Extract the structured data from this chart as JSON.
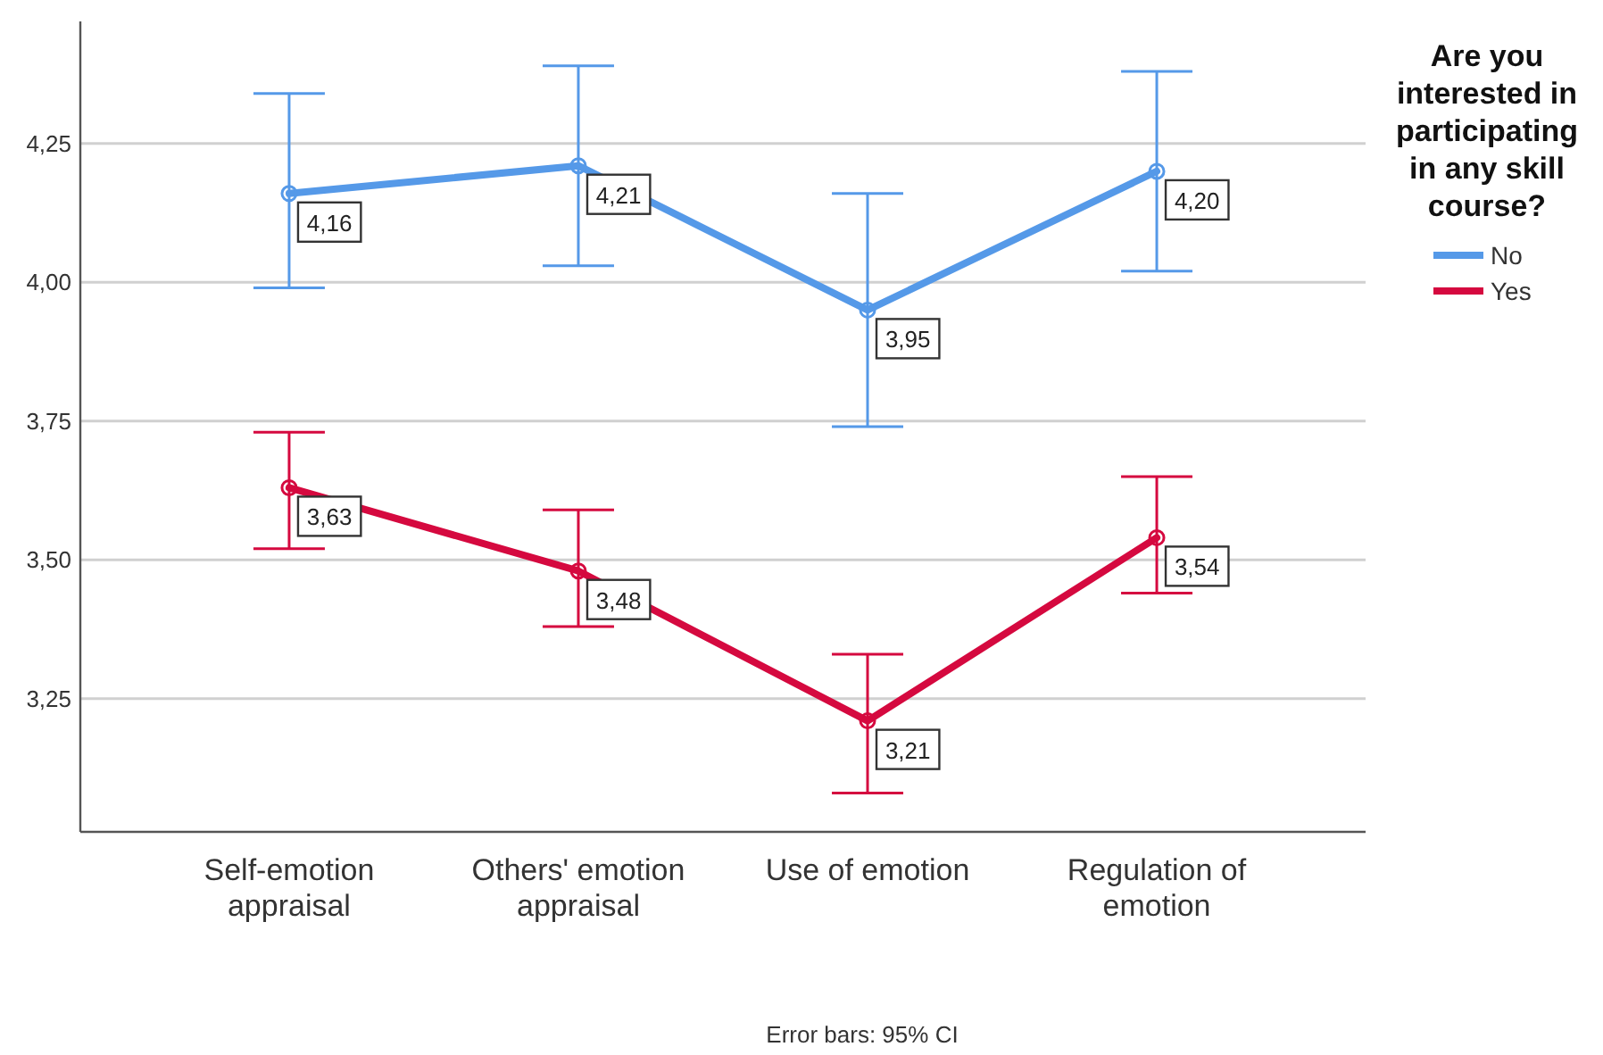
{
  "chart_data": {
    "type": "line",
    "categories": [
      "Self-emotion appraisal",
      "Others' emotion appraisal",
      "Use of emotion",
      "Regulation of emotion"
    ],
    "series": [
      {
        "name": "No",
        "color": "#5599e8",
        "values": [
          4.16,
          4.21,
          3.95,
          4.2
        ],
        "errors": [
          [
            3.99,
            4.34
          ],
          [
            4.03,
            4.39
          ],
          [
            3.74,
            4.16
          ],
          [
            4.02,
            4.38
          ]
        ],
        "value_labels": [
          "4,16",
          "4,21",
          "3,95",
          "4,20"
        ]
      },
      {
        "name": "Yes",
        "color": "#d5093f",
        "values": [
          3.63,
          3.48,
          3.21,
          3.54
        ],
        "errors": [
          [
            3.52,
            3.73
          ],
          [
            3.38,
            3.59
          ],
          [
            3.08,
            3.33
          ],
          [
            3.44,
            3.65
          ]
        ],
        "value_labels": [
          "3,63",
          "3,48",
          "3,21",
          "3,54"
        ]
      }
    ],
    "ylim": [
      3.01,
      4.47
    ],
    "yticks": [
      {
        "value": 3.25,
        "label": "3,25"
      },
      {
        "value": 3.5,
        "label": "3,50"
      },
      {
        "value": 3.75,
        "label": "3,75"
      },
      {
        "value": 4.0,
        "label": "4,00"
      },
      {
        "value": 4.25,
        "label": "4,25"
      }
    ],
    "grid": "y",
    "marker": "circle",
    "line_style": "solid",
    "legend": "right",
    "legend_title": "Are you interested in participating in any skill course?",
    "annotations": [
      "Error bars: 95% CI"
    ]
  }
}
